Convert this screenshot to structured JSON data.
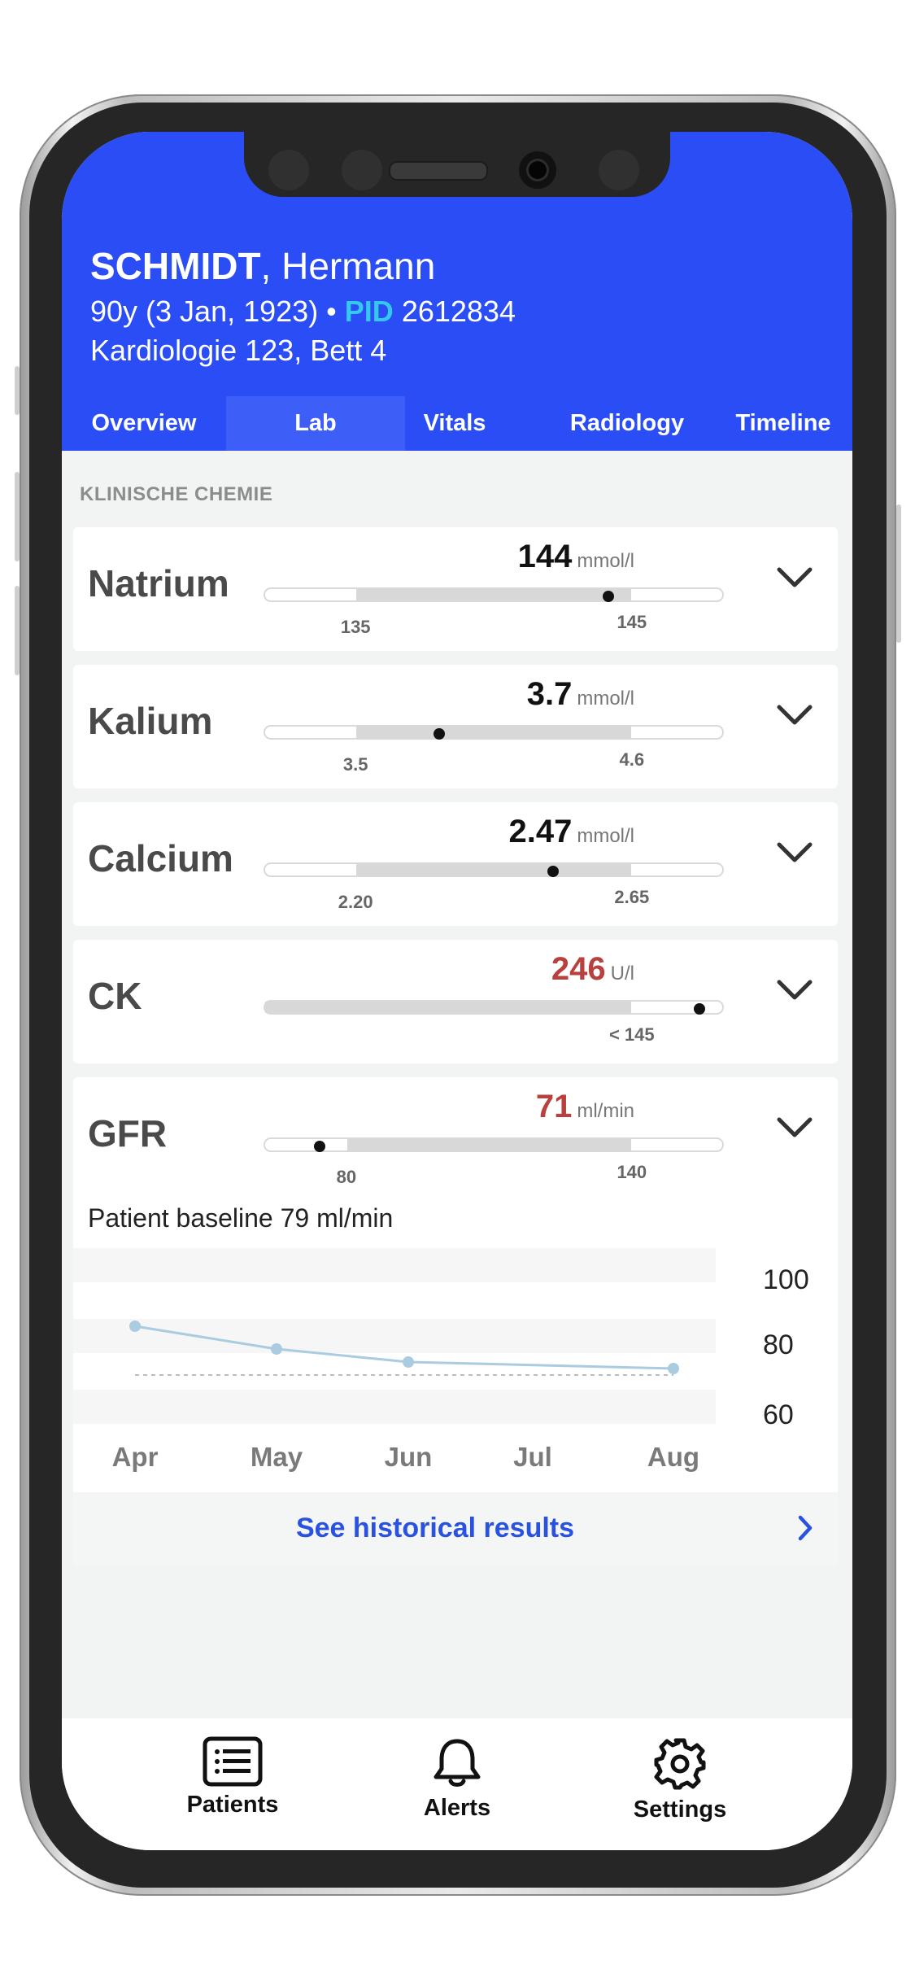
{
  "patient": {
    "last_name": "SCHMIDT",
    "first_name": ", Hermann",
    "age_dob": "90y (3 Jan, 1923) • ",
    "pid_label": "PID",
    "pid_value": " 2612834",
    "location": "Kardiologie 123, Bett 4"
  },
  "tabs": [
    {
      "label": "Overview",
      "active": false
    },
    {
      "label": "Lab",
      "active": true
    },
    {
      "label": "Vitals",
      "active": false
    },
    {
      "label": "Radiology",
      "active": false
    },
    {
      "label": "Timeline",
      "active": false
    }
  ],
  "section_title": "KLINISCHE CHEMIE",
  "labs": [
    {
      "name": "Natrium",
      "value": "144",
      "unit": "mmol/l",
      "abnormal": false,
      "low_label": "135",
      "high_label": "145",
      "range_fraction": [
        0.2,
        0.8
      ],
      "marker_fraction": 0.75
    },
    {
      "name": "Kalium",
      "value": "3.7",
      "unit": "mmol/l",
      "abnormal": false,
      "low_label": "3.5",
      "high_label": "4.6",
      "range_fraction": [
        0.2,
        0.8
      ],
      "marker_fraction": 0.38
    },
    {
      "name": "Calcium",
      "value": "2.47",
      "unit": "mmol/l",
      "abnormal": false,
      "low_label": "2.20",
      "high_label": "2.65",
      "range_fraction": [
        0.2,
        0.8
      ],
      "marker_fraction": 0.63
    },
    {
      "name": "CK",
      "value": "246",
      "unit": "U/l",
      "abnormal": true,
      "low_label": "",
      "high_label": "< 145",
      "range_fraction": [
        0.0,
        0.8
      ],
      "marker_fraction": 0.95
    },
    {
      "name": "GFR",
      "value": "71",
      "unit": "ml/min",
      "abnormal": true,
      "low_label": "80",
      "high_label": "140",
      "range_fraction": [
        0.18,
        0.8
      ],
      "marker_fraction": 0.12
    }
  ],
  "gfr_detail": {
    "baseline_text": "Patient baseline 79 ml/min",
    "history_label": "See historical results"
  },
  "chart_data": {
    "type": "line",
    "x": [
      "Apr",
      "May",
      "Jun",
      "Jul",
      "Aug"
    ],
    "series": [
      {
        "values": [
          86,
          79,
          75,
          null,
          73
        ]
      }
    ],
    "baseline": 79,
    "yticks": [
      100,
      80,
      60
    ],
    "ylim": [
      50,
      110
    ]
  },
  "bottom_nav": [
    {
      "label": "Patients",
      "icon": "list-icon"
    },
    {
      "label": "Alerts",
      "icon": "bell-icon"
    },
    {
      "label": "Settings",
      "icon": "gear-icon"
    }
  ],
  "colors": {
    "header_bg": "#2a4df5",
    "pid_accent": "#35c8ef",
    "abnormal": "#b8403f",
    "link": "#2a52e0",
    "chart_line": "#a9cce0"
  }
}
